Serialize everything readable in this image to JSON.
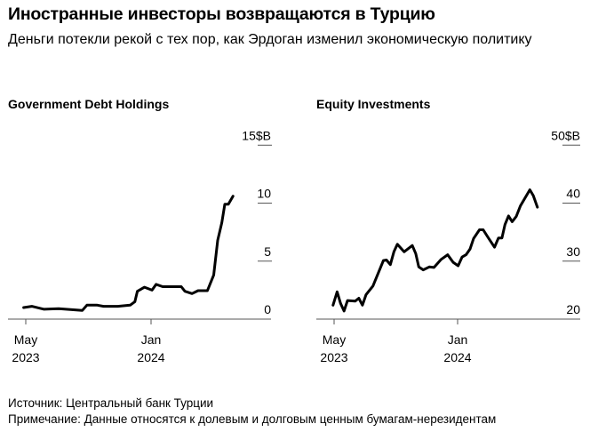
{
  "title": "Иностранные инвесторы возвращаются в Турцию",
  "subtitle": "Деньги потекли рекой с тех пор, как Эрдоган изменил экономическую политику",
  "footer": {
    "source": "Источник: Центральный банк Турции",
    "note": "Примечание: Данные относятся к долевым и долговым ценным бумагам-нерезидентам"
  },
  "chart_data": [
    {
      "type": "line",
      "title": "Government Debt Holdings",
      "unit": "$B",
      "ylim": [
        0,
        15
      ],
      "yticks": [
        0,
        5,
        10,
        15
      ],
      "ytick_labels": [
        "0",
        "5",
        "10",
        "15$B"
      ],
      "xticks": [
        {
          "date": "2023-05-01",
          "label": [
            "May",
            "2023"
          ]
        },
        {
          "date": "2024-01-01",
          "label": [
            "Jan",
            "2024"
          ]
        }
      ],
      "color": "#000000",
      "x": [
        "2023-04-27",
        "2023-05-13",
        "2023-06-06",
        "2023-07-04",
        "2023-08-20",
        "2023-08-29",
        "2023-09-18",
        "2023-09-30",
        "2023-10-28",
        "2023-11-21",
        "2023-11-30",
        "2023-12-05",
        "2023-12-19",
        "2024-01-03",
        "2024-01-11",
        "2024-01-24",
        "2024-02-28",
        "2024-03-06",
        "2024-03-20",
        "2024-04-01",
        "2024-04-19",
        "2024-05-01",
        "2024-05-09",
        "2024-05-17",
        "2024-05-23",
        "2024-05-30",
        "2024-06-08"
      ],
      "y": [
        1.0,
        1.1,
        0.85,
        0.9,
        0.75,
        1.2,
        1.2,
        1.1,
        1.1,
        1.2,
        1.5,
        2.4,
        2.75,
        2.5,
        3.0,
        2.8,
        2.8,
        2.4,
        2.2,
        2.45,
        2.45,
        3.8,
        6.8,
        8.3,
        9.9,
        9.9,
        10.6
      ]
    },
    {
      "type": "line",
      "title": "Equity Investments",
      "unit": "$B",
      "ylim": [
        20,
        50
      ],
      "yticks": [
        20,
        30,
        40,
        50
      ],
      "ytick_labels": [
        "20",
        "30",
        "40",
        "50$B"
      ],
      "xticks": [
        {
          "date": "2023-05-01",
          "label": [
            "May",
            "2023"
          ]
        },
        {
          "date": "2024-01-01",
          "label": [
            "Jan",
            "2024"
          ]
        }
      ],
      "color": "#000000",
      "x": [
        "2023-04-29",
        "2023-05-07",
        "2023-05-14",
        "2023-05-21",
        "2023-05-28",
        "2023-06-12",
        "2023-06-19",
        "2023-06-26",
        "2023-07-03",
        "2023-07-17",
        "2023-08-07",
        "2023-08-13",
        "2023-08-21",
        "2023-08-28",
        "2023-09-04",
        "2023-09-17",
        "2023-10-03",
        "2023-10-10",
        "2023-10-16",
        "2023-10-25",
        "2023-11-06",
        "2023-11-15",
        "2023-11-29",
        "2023-12-12",
        "2023-12-23",
        "2024-01-02",
        "2024-01-10",
        "2024-01-18",
        "2024-01-26",
        "2024-02-02",
        "2024-02-13",
        "2024-02-20",
        "2024-02-29",
        "2024-03-13",
        "2024-03-21",
        "2024-03-28",
        "2024-04-03",
        "2024-04-10",
        "2024-04-17",
        "2024-04-25",
        "2024-05-03",
        "2024-05-22",
        "2024-05-29",
        "2024-06-06"
      ],
      "y": [
        22.4,
        24.7,
        22.7,
        21.4,
        23.2,
        23.1,
        23.6,
        22.4,
        24.2,
        25.7,
        30.1,
        30.2,
        29.4,
        31.6,
        32.9,
        31.6,
        32.7,
        31.3,
        29.0,
        28.5,
        29.0,
        28.9,
        30.3,
        31.1,
        29.8,
        29.2,
        30.7,
        31.1,
        32.1,
        33.9,
        35.4,
        35.4,
        34.1,
        32.4,
        34.0,
        34.0,
        36.3,
        37.8,
        36.8,
        37.7,
        39.5,
        42.3,
        41.3,
        39.3
      ]
    }
  ]
}
